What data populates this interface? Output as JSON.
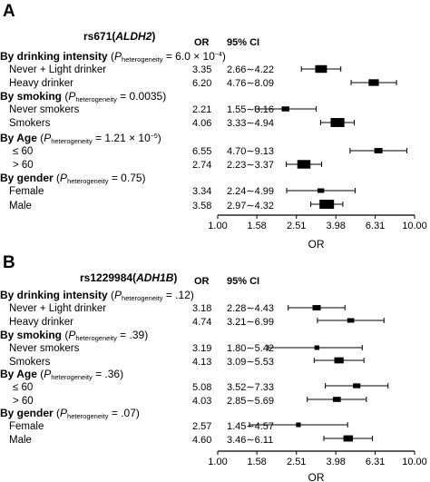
{
  "chart_data": [
    {
      "type": "forest",
      "panel": "A",
      "snp": "rs671",
      "gene": "ALDH2",
      "col_or": "OR",
      "col_ci": "95% CI",
      "xlabel": "OR",
      "x_scale": "log",
      "xlim": [
        1.0,
        10.0
      ],
      "x_ticks": [
        "1.00",
        "1.58",
        "2.51",
        "3.98",
        "6.31",
        "10.00"
      ],
      "groups": [
        {
          "label": "By drinking intensity",
          "p_text": "= 6.0 × 10",
          "p_exp": "−4",
          "rows": [
            {
              "label": "Never + Light drinker",
              "or_text": "3.35",
              "ci_text": "2.66∼4.22",
              "or": 3.35,
              "lo": 2.66,
              "hi": 4.22
            },
            {
              "label": "Heavy drinker",
              "or_text": "6.20",
              "ci_text": "4.76∼8.09",
              "or": 6.2,
              "lo": 4.76,
              "hi": 8.09
            }
          ]
        },
        {
          "label": "By smoking",
          "p_text": "= 0.0035",
          "p_exp": "",
          "rows": [
            {
              "label": "Never smokers",
              "or_text": "2.21",
              "ci_text": "1.55∼3.16",
              "or": 2.21,
              "lo": 1.55,
              "hi": 3.16
            },
            {
              "label": "Smokers",
              "or_text": "4.06",
              "ci_text": "3.33∼4.94",
              "or": 4.06,
              "lo": 3.33,
              "hi": 4.94
            }
          ]
        },
        {
          "label": "By Age",
          "p_text": "= 1.21 × 10",
          "p_exp": "−5",
          "rows": [
            {
              "label": "≤ 60",
              "or_text": "6.55",
              "ci_text": "4.70∼9.13",
              "or": 6.55,
              "lo": 4.7,
              "hi": 9.13
            },
            {
              "label": "> 60",
              "or_text": "2.74",
              "ci_text": "2.23∼3.37",
              "or": 2.74,
              "lo": 2.23,
              "hi": 3.37
            }
          ]
        },
        {
          "label": "By gender",
          "p_text": "= 0.75",
          "p_exp": "",
          "rows": [
            {
              "label": "Female",
              "or_text": "3.34",
              "ci_text": "2.24∼4.99",
              "or": 3.34,
              "lo": 2.24,
              "hi": 4.99
            },
            {
              "label": "Male",
              "or_text": "3.58",
              "ci_text": "2.97∼4.32",
              "or": 3.58,
              "lo": 2.97,
              "hi": 4.32
            }
          ]
        }
      ]
    },
    {
      "type": "forest",
      "panel": "B",
      "snp": "rs1229984",
      "gene": "ADH1B",
      "col_or": "OR",
      "col_ci": "95% CI",
      "xlabel": "OR",
      "x_scale": "log",
      "xlim": [
        1.0,
        10.0
      ],
      "x_ticks": [
        "1.00",
        "1.58",
        "2.51",
        "3.98",
        "6.31",
        "10.00"
      ],
      "groups": [
        {
          "label": "By drinking intensity",
          "p_text": "= .12)",
          "p_exp": "",
          "rows": [
            {
              "label": "Never + Light drinker",
              "or_text": "3.18",
              "ci_text": "2.28∼4.43",
              "or": 3.18,
              "lo": 2.28,
              "hi": 4.43
            },
            {
              "label": "Heavy drinker",
              "or_text": "4.74",
              "ci_text": "3.21∼6.99",
              "or": 4.74,
              "lo": 3.21,
              "hi": 6.99
            }
          ]
        },
        {
          "label": "By smoking",
          "p_text": "= .39)",
          "p_exp": "",
          "rows": [
            {
              "label": "Never smokers",
              "or_text": "3.19",
              "ci_text": "1.80∼5.42",
              "or": 3.19,
              "lo": 1.8,
              "hi": 5.42
            },
            {
              "label": "Smokers",
              "or_text": "4.13",
              "ci_text": "3.09∼5.53",
              "or": 4.13,
              "lo": 3.09,
              "hi": 5.53
            }
          ]
        },
        {
          "label": "By Age",
          "p_text": "= .36)",
          "p_exp": "",
          "rows": [
            {
              "label": "≤ 60",
              "or_text": "5.08",
              "ci_text": "3.52∼7.33",
              "or": 5.08,
              "lo": 3.52,
              "hi": 7.33
            },
            {
              "label": "> 60",
              "or_text": "4.03",
              "ci_text": "2.85∼5.69",
              "or": 4.03,
              "lo": 2.85,
              "hi": 5.69
            }
          ]
        },
        {
          "label": "By gender",
          "p_text": "= .07)",
          "p_exp": "",
          "rows": [
            {
              "label": "Female",
              "or_text": "2.57",
              "ci_text": "1.45∼4.57",
              "or": 2.57,
              "lo": 1.45,
              "hi": 4.57
            },
            {
              "label": "Male",
              "or_text": "4.60",
              "ci_text": "3.46∼6.11",
              "or": 4.6,
              "lo": 3.46,
              "hi": 6.11
            }
          ]
        }
      ]
    }
  ],
  "p_prefix": "P",
  "p_sub": "heterogeneity"
}
